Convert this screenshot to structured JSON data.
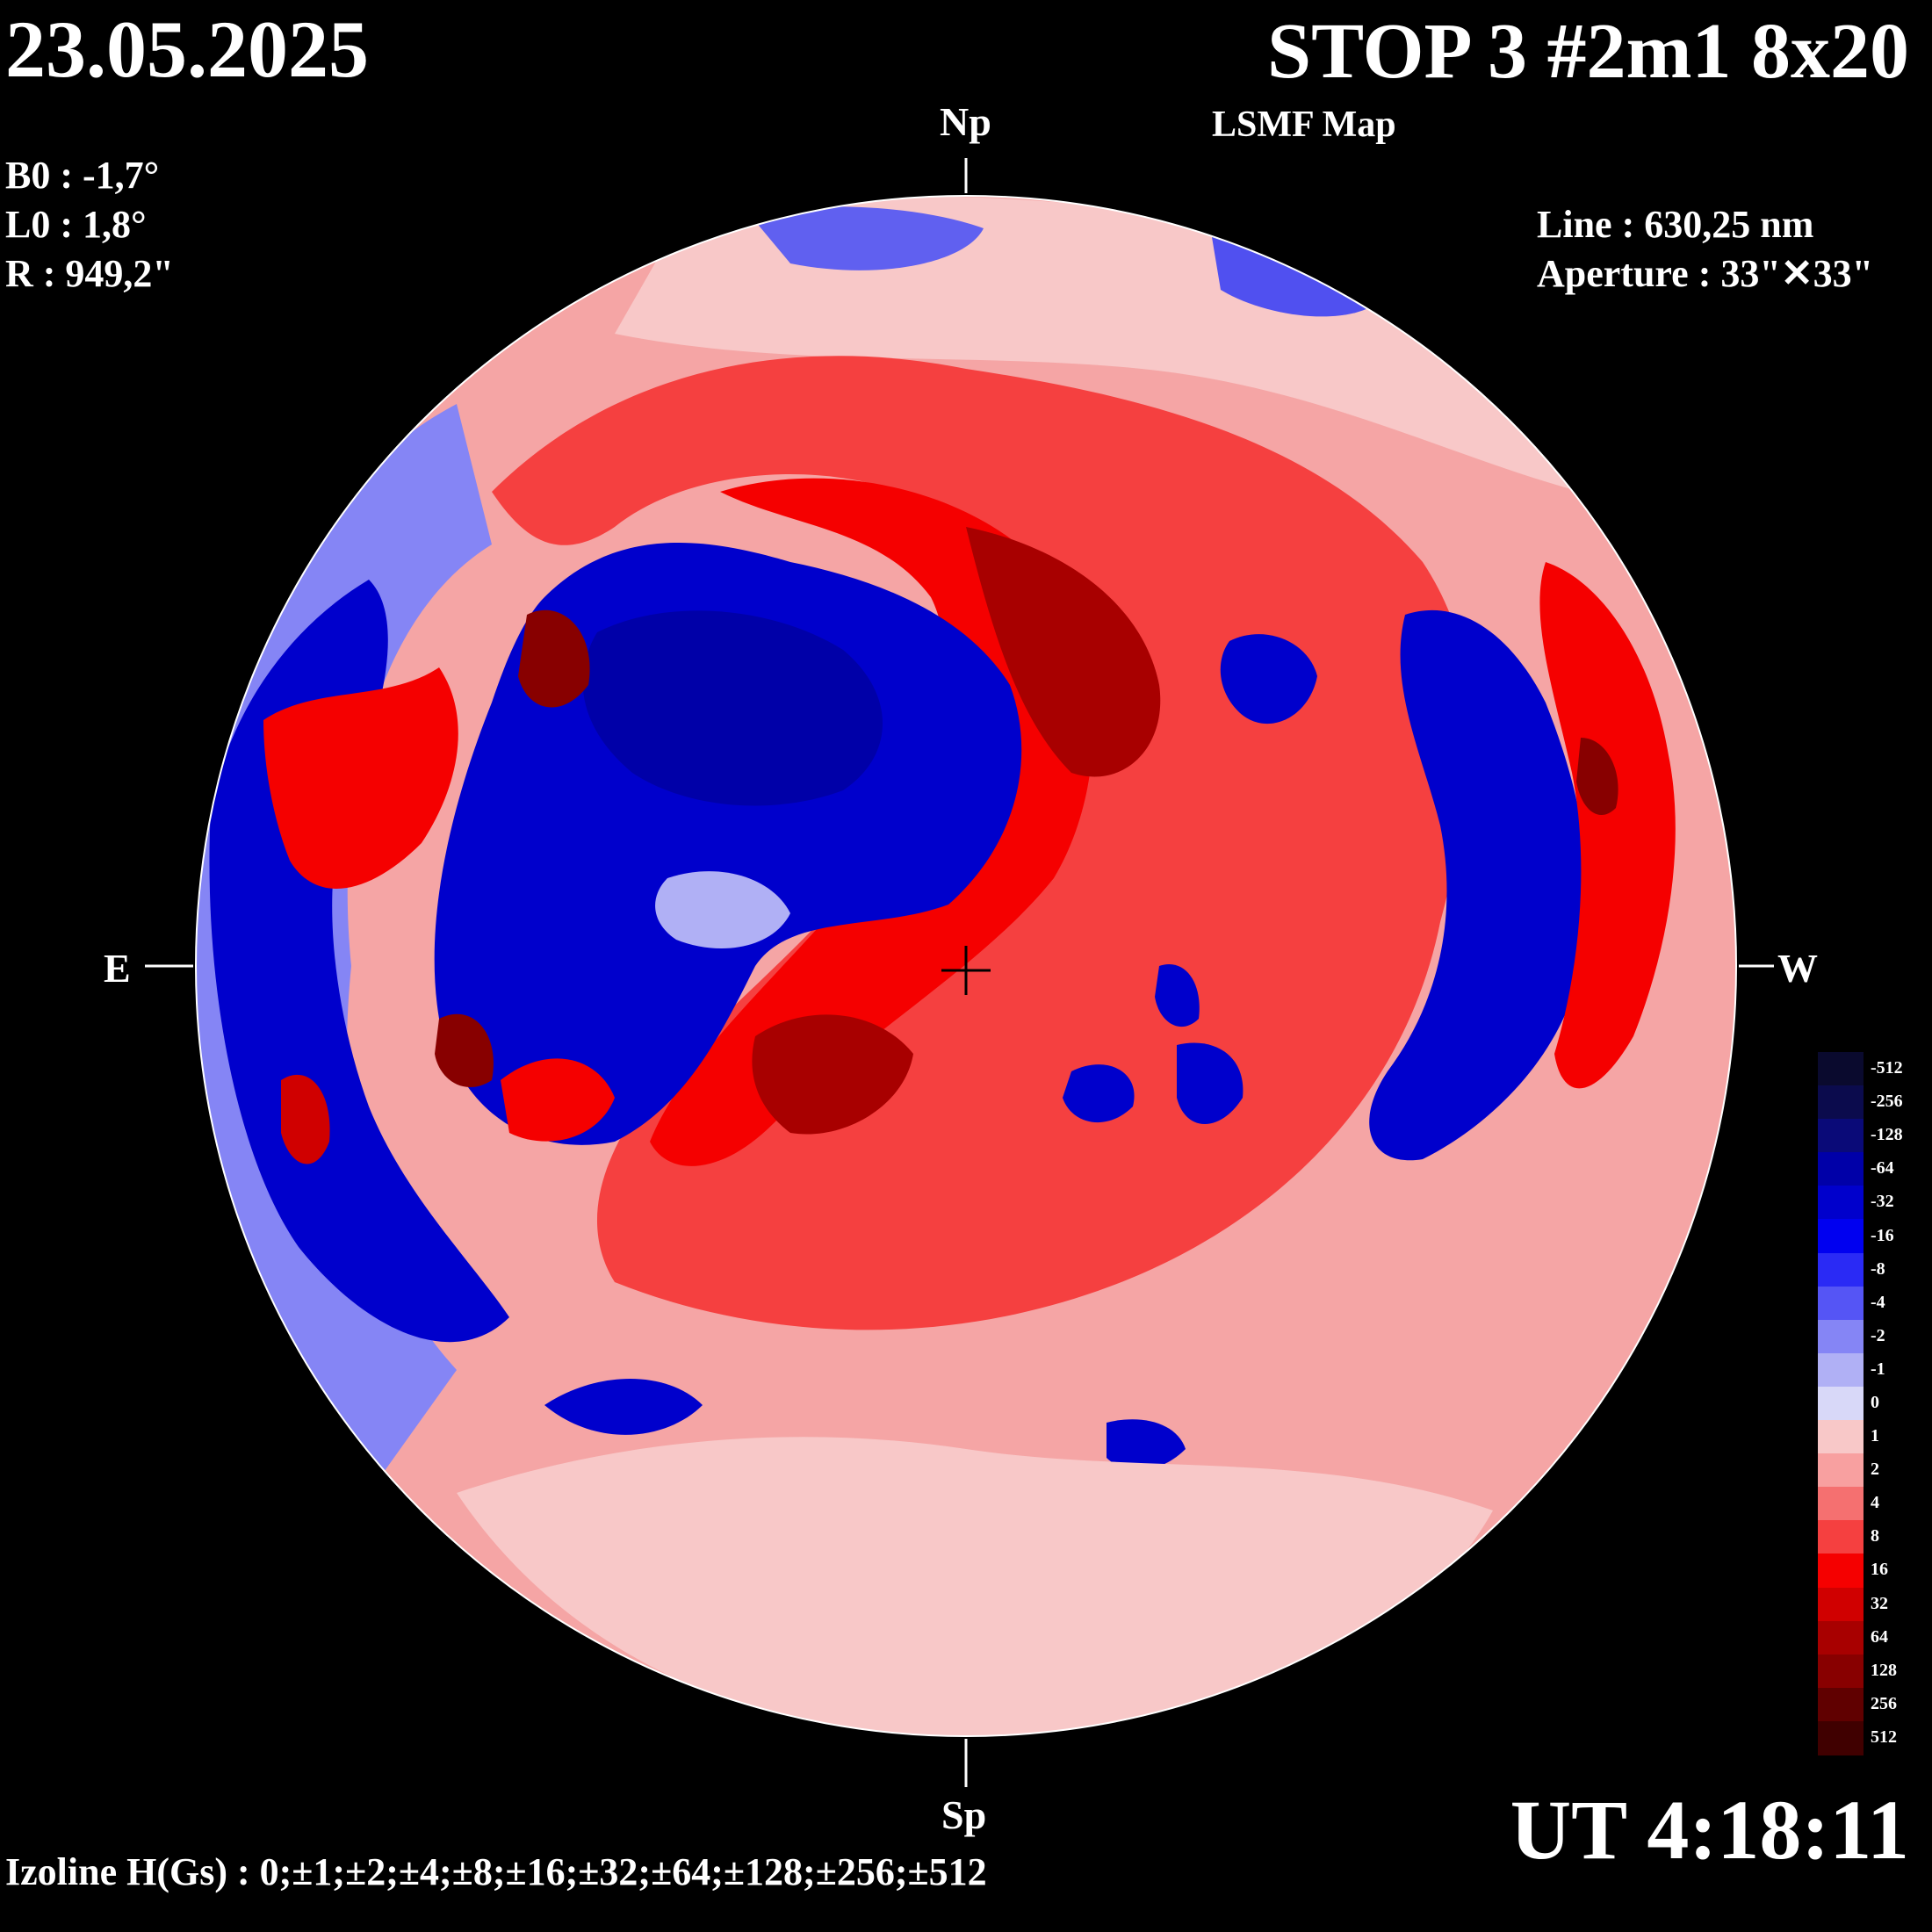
{
  "header": {
    "date": "23.05.2025",
    "title": "STOP 3 #2m1 8x20",
    "subtitle": "LSMF  Map"
  },
  "params": {
    "b0": "B0 : -1,7°",
    "l0": "L0 : 1,8°",
    "r": "R  : 949,2\""
  },
  "instrument": {
    "line": "Line :  630,25 nm",
    "aperture": "Aperture : 33\"✕33\""
  },
  "cardinals": {
    "north": "Np",
    "south": "Sp",
    "east": "E",
    "west": "W"
  },
  "time": "UT 4:18:11",
  "izoline": "Izoline H(Gs) : 0;±1;±2;±4;±8;±16;±32;±64;±128;±256;±512",
  "colorbar": {
    "levels": [
      {
        "label": "-512",
        "color": "#0a0a2e"
      },
      {
        "label": "-256",
        "color": "#0b0b4d"
      },
      {
        "label": "-128",
        "color": "#0a0a78"
      },
      {
        "label": "-64",
        "color": "#0000a8"
      },
      {
        "label": "-32",
        "color": "#0000cc"
      },
      {
        "label": "-16",
        "color": "#0000f0"
      },
      {
        "label": "-8",
        "color": "#2a2af5"
      },
      {
        "label": "-4",
        "color": "#5555f5"
      },
      {
        "label": "-2",
        "color": "#8585f5"
      },
      {
        "label": "-1",
        "color": "#b0b0f5"
      },
      {
        "label": "0",
        "color": "#d8d8f8"
      },
      {
        "label": "1",
        "color": "#f8c8c8"
      },
      {
        "label": "2",
        "color": "#f8a0a0"
      },
      {
        "label": "4",
        "color": "#f57070"
      },
      {
        "label": "8",
        "color": "#f54040"
      },
      {
        "label": "16",
        "color": "#f50000"
      },
      {
        "label": "32",
        "color": "#d00000"
      },
      {
        "label": "64",
        "color": "#a80000"
      },
      {
        "label": "128",
        "color": "#880000"
      },
      {
        "label": "256",
        "color": "#600000"
      },
      {
        "label": "512",
        "color": "#400000"
      }
    ]
  },
  "map": {
    "background_color": "#f8c8c8",
    "regions": [
      {
        "polarity": "negative",
        "level": "-32"
      },
      {
        "polarity": "positive",
        "level": "16"
      }
    ]
  }
}
